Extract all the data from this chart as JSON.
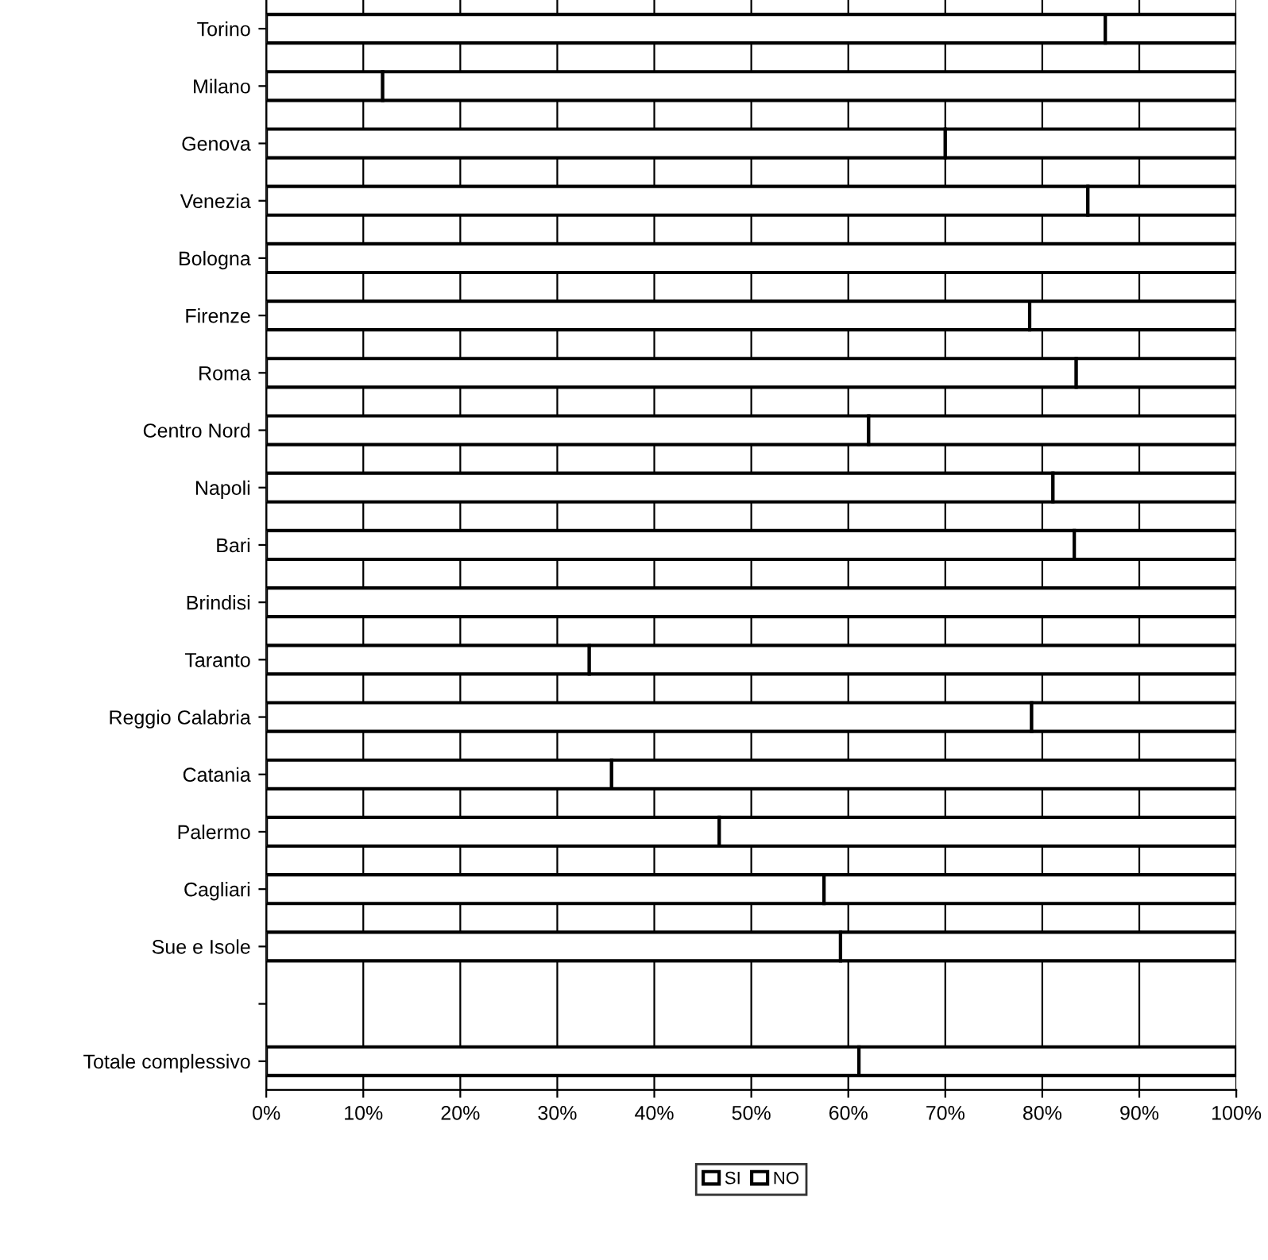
{
  "chart_data": {
    "type": "bar",
    "orientation": "horizontal",
    "stacked": true,
    "categories": [
      "Torino",
      "Milano",
      "Genova",
      "Venezia",
      "Bologna",
      "Firenze",
      "Roma",
      "Centro Nord",
      "Napoli",
      "Bari",
      "Brindisi",
      "Taranto",
      "Reggio Calabria",
      "Catania",
      "Palermo",
      "Cagliari",
      "Sue e Isole",
      null,
      "Totale complessivo"
    ],
    "series": [
      {
        "name": "SI",
        "color": "#ffffff",
        "values": [
          86.5,
          12.0,
          70.0,
          84.7,
          100,
          78.7,
          83.5,
          62.1,
          81.1,
          83.3,
          100,
          33.3,
          78.9,
          35.6,
          46.7,
          57.5,
          59.2,
          null,
          61.1
        ]
      },
      {
        "name": "NO",
        "color": "#ffffff",
        "values": [
          13.5,
          88.0,
          30.0,
          15.3,
          0,
          21.3,
          16.5,
          37.9,
          18.9,
          16.7,
          0,
          66.7,
          21.1,
          64.4,
          53.3,
          42.5,
          40.8,
          null,
          38.9
        ]
      }
    ],
    "xlim": [
      0,
      100
    ],
    "xticks": [
      {
        "value": 0,
        "label": "0%"
      },
      {
        "value": 10,
        "label": "10%"
      },
      {
        "value": 20,
        "label": "20%"
      },
      {
        "value": 30,
        "label": "30%"
      },
      {
        "value": 40,
        "label": "40%"
      },
      {
        "value": 50,
        "label": "50%"
      },
      {
        "value": 60,
        "label": "60%"
      },
      {
        "value": 70,
        "label": "70%"
      },
      {
        "value": 80,
        "label": "80%"
      },
      {
        "value": 90,
        "label": "90%"
      },
      {
        "value": 100,
        "label": "100%"
      }
    ],
    "grid": "x",
    "legend": "bottom"
  }
}
